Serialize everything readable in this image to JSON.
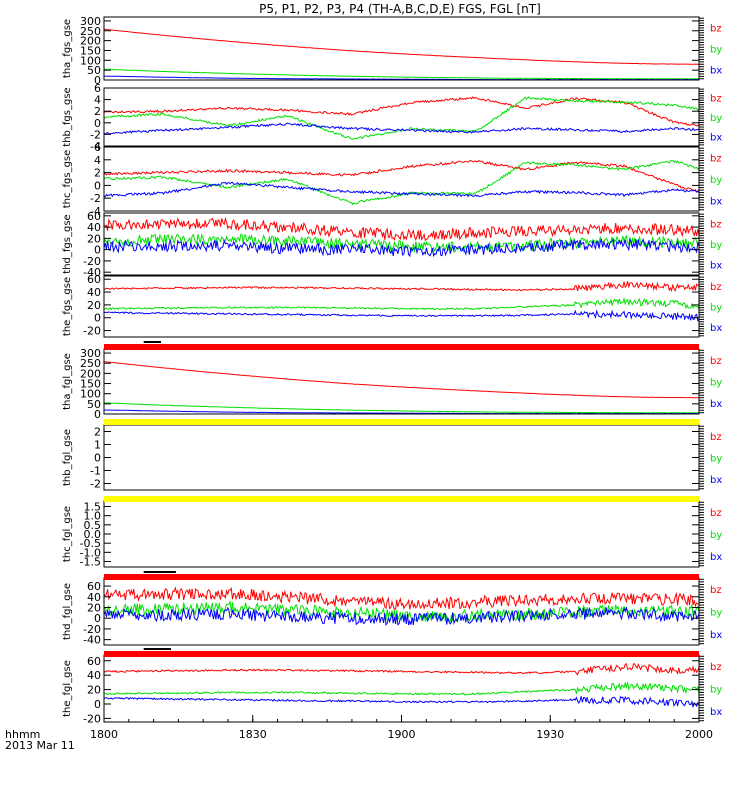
{
  "title": "P5, P1, P2, P3, P4 (TH-A,B,C,D,E) FGS, FGL [nT]",
  "colors": {
    "bz": "#ff0000",
    "by": "#00e000",
    "bx": "#0000ff",
    "bar_red": "#ff0000",
    "bar_yellow": "#ffff00",
    "bar_black": "#000000"
  },
  "x_axis": {
    "ticks": [
      "1800",
      "1830",
      "1900",
      "1930",
      "2000"
    ],
    "time_label": "hhmm",
    "date_label": "2013 Mar 11"
  },
  "chart_data": [
    {
      "type": "line",
      "ylabel": "tha_fgs_gse",
      "yticks": [
        "300",
        "250",
        "200",
        "150",
        "100",
        "50",
        "0"
      ],
      "ylim": [
        0,
        320
      ],
      "legend": [
        "bz",
        "by",
        "bx"
      ],
      "series": [
        {
          "name": "bz",
          "x": [
            0,
            10,
            20,
            30,
            40,
            50,
            60,
            70,
            80,
            90,
            100,
            110,
            120
          ],
          "values": [
            258,
            232,
            208,
            186,
            166,
            148,
            133,
            120,
            108,
            97,
            88,
            82,
            80
          ]
        },
        {
          "name": "by",
          "x": [
            0,
            10,
            20,
            30,
            40,
            50,
            60,
            70,
            80,
            90,
            100,
            110,
            120
          ],
          "values": [
            55,
            45,
            37,
            30,
            24,
            19,
            15,
            12,
            9,
            8,
            7,
            6,
            6
          ]
        },
        {
          "name": "bx",
          "x": [
            0,
            10,
            20,
            30,
            40,
            50,
            60,
            70,
            80,
            90,
            100,
            110,
            120
          ],
          "values": [
            20,
            15,
            11,
            8,
            6,
            5,
            4,
            3,
            2,
            2,
            2,
            2,
            2
          ]
        }
      ]
    },
    {
      "type": "line",
      "ylabel": "thb_fgs_gse",
      "yticks": [
        "6",
        "4",
        "2",
        "0",
        "-2",
        "-4"
      ],
      "ylim": [
        -4,
        6
      ],
      "legend": [
        "bz",
        "by",
        "bx"
      ],
      "series": [
        {
          "name": "bz",
          "x": [
            0,
            12,
            25,
            37,
            50,
            62,
            75,
            85,
            95,
            105,
            115,
            120
          ],
          "values": [
            1.8,
            2.0,
            2.5,
            2.2,
            1.5,
            3.5,
            4.3,
            2.5,
            4.2,
            3.5,
            0.1,
            -0.5
          ]
        },
        {
          "name": "by",
          "x": [
            0,
            12,
            25,
            37,
            50,
            62,
            75,
            85,
            95,
            105,
            115,
            120
          ],
          "values": [
            1.0,
            1.5,
            -0.5,
            1.2,
            -2.8,
            -1.0,
            -1.5,
            4.3,
            3.8,
            3.6,
            3.0,
            2.3
          ]
        },
        {
          "name": "bx",
          "x": [
            0,
            12,
            25,
            37,
            50,
            62,
            75,
            85,
            95,
            105,
            115,
            120
          ],
          "values": [
            -1.8,
            -1.3,
            -0.8,
            -0.2,
            -1.0,
            -1.3,
            -1.6,
            -1.0,
            -1.2,
            -1.5,
            -1.0,
            -1.2
          ]
        }
      ]
    },
    {
      "type": "line",
      "ylabel": "thc_fgs_gse",
      "yticks": [
        "6",
        "4",
        "2",
        "0",
        "-2",
        "-4"
      ],
      "ylim": [
        -4,
        6
      ],
      "legend": [
        "bz",
        "by",
        "bx"
      ],
      "series": [
        {
          "name": "bz",
          "x": [
            0,
            12,
            25,
            37,
            50,
            62,
            75,
            85,
            95,
            105,
            115,
            120
          ],
          "values": [
            1.8,
            2.0,
            2.3,
            2.0,
            1.6,
            3.0,
            3.8,
            2.5,
            3.6,
            3.0,
            0.1,
            -1.0
          ]
        },
        {
          "name": "by",
          "x": [
            0,
            12,
            25,
            37,
            50,
            62,
            75,
            85,
            95,
            105,
            115,
            120
          ],
          "values": [
            1.0,
            1.3,
            -0.3,
            1.0,
            -2.8,
            -1.2,
            -1.3,
            3.5,
            3.2,
            2.5,
            3.8,
            2.6
          ]
        },
        {
          "name": "bx",
          "x": [
            0,
            12,
            25,
            37,
            50,
            62,
            75,
            85,
            95,
            105,
            115,
            120
          ],
          "values": [
            -1.6,
            -1.2,
            0.4,
            -0.3,
            -1.0,
            -1.3,
            -1.6,
            -1.0,
            -1.1,
            -1.5,
            -0.7,
            -1.0
          ]
        }
      ]
    },
    {
      "type": "line",
      "ylabel": "thd_fgs_gse",
      "yticks": [
        "60",
        "40",
        "20",
        "0",
        "-20",
        "-40"
      ],
      "ylim": [
        -45,
        65
      ],
      "legend": [
        "bz",
        "by",
        "bx"
      ],
      "series": [
        {
          "name": "bz",
          "x": [
            0,
            12,
            25,
            37,
            50,
            62,
            75,
            85,
            95,
            105,
            115,
            120
          ],
          "values": [
            43,
            45,
            46,
            40,
            30,
            25,
            30,
            33,
            36,
            38,
            35,
            33
          ]
        },
        {
          "name": "by",
          "x": [
            0,
            12,
            25,
            37,
            50,
            62,
            75,
            85,
            95,
            105,
            115,
            120
          ],
          "values": [
            15,
            17,
            20,
            15,
            10,
            5,
            5,
            8,
            12,
            15,
            12,
            13
          ]
        },
        {
          "name": "bx",
          "x": [
            0,
            12,
            25,
            37,
            50,
            62,
            75,
            85,
            95,
            105,
            115,
            120
          ],
          "values": [
            5,
            6,
            8,
            2,
            0,
            -2,
            0,
            4,
            8,
            10,
            5,
            3
          ]
        }
      ]
    },
    {
      "type": "line",
      "ylabel": "the_fgs_gse",
      "yticks": [
        "60",
        "40",
        "20",
        "0",
        "-20"
      ],
      "ylim": [
        -30,
        65
      ],
      "legend": [
        "bz",
        "by",
        "bx"
      ],
      "series": [
        {
          "name": "bz",
          "x": [
            0,
            12,
            25,
            37,
            50,
            62,
            75,
            85,
            95,
            105,
            115,
            120
          ],
          "values": [
            45,
            46,
            47,
            47,
            46,
            45,
            44,
            43,
            45,
            52,
            47,
            48
          ]
        },
        {
          "name": "by",
          "x": [
            0,
            12,
            25,
            37,
            50,
            62,
            75,
            85,
            95,
            105,
            115,
            120
          ],
          "values": [
            14,
            15,
            16,
            16,
            15,
            14,
            14,
            17,
            20,
            25,
            22,
            18
          ]
        },
        {
          "name": "bx",
          "x": [
            0,
            12,
            25,
            37,
            50,
            62,
            75,
            85,
            95,
            105,
            115,
            120
          ],
          "values": [
            8,
            7,
            6,
            5,
            4,
            3,
            3,
            4,
            6,
            5,
            2,
            0
          ]
        }
      ]
    },
    {
      "type": "line",
      "ylabel": "tha_fgl_gse",
      "yticks": [
        "300",
        "250",
        "200",
        "150",
        "100",
        "50",
        "0"
      ],
      "ylim": [
        0,
        320
      ],
      "legend": [
        "bz",
        "by",
        "bx"
      ],
      "series": [
        {
          "name": "bz",
          "x": [
            0,
            10,
            20,
            30,
            40,
            50,
            60,
            70,
            80,
            90,
            100,
            110,
            120
          ],
          "values": [
            258,
            232,
            208,
            186,
            166,
            148,
            133,
            120,
            108,
            97,
            88,
            82,
            80
          ]
        },
        {
          "name": "by",
          "x": [
            0,
            10,
            20,
            30,
            40,
            50,
            60,
            70,
            80,
            90,
            100,
            110,
            120
          ],
          "values": [
            55,
            45,
            37,
            30,
            24,
            19,
            15,
            12,
            9,
            8,
            7,
            6,
            6
          ]
        },
        {
          "name": "bx",
          "x": [
            0,
            10,
            20,
            30,
            40,
            50,
            60,
            70,
            80,
            90,
            100,
            110,
            120
          ],
          "values": [
            20,
            15,
            11,
            8,
            6,
            5,
            4,
            3,
            2,
            2,
            2,
            2,
            2
          ]
        }
      ]
    },
    {
      "type": "line",
      "ylabel": "thb_fgl_gse",
      "yticks": [
        "2",
        "1",
        "0",
        "-1",
        "-2"
      ],
      "ylim": [
        -2.5,
        2.5
      ],
      "legend": [
        "bz",
        "by",
        "bx"
      ],
      "series": []
    },
    {
      "type": "line",
      "ylabel": "thc_fgl_gse",
      "yticks": [
        "1.5",
        "1.0",
        "0.5",
        "0.0",
        "-0.5",
        "-1.0",
        "-1.5"
      ],
      "ylim": [
        -1.8,
        1.8
      ],
      "legend": [
        "bz",
        "by",
        "bx"
      ],
      "series": []
    },
    {
      "type": "line",
      "ylabel": "thd_fgl_gse",
      "yticks": [
        "60",
        "40",
        "20",
        "0",
        "-20",
        "-40"
      ],
      "ylim": [
        -50,
        75
      ],
      "legend": [
        "bz",
        "by",
        "bx"
      ],
      "series": [
        {
          "name": "bz",
          "x": [
            0,
            12,
            25,
            37,
            50,
            62,
            75,
            85,
            95,
            105,
            115,
            120
          ],
          "values": [
            43,
            45,
            46,
            40,
            30,
            25,
            30,
            33,
            36,
            38,
            35,
            33
          ]
        },
        {
          "name": "by",
          "x": [
            0,
            12,
            25,
            37,
            50,
            62,
            75,
            85,
            95,
            105,
            115,
            120
          ],
          "values": [
            15,
            17,
            20,
            15,
            10,
            5,
            5,
            8,
            12,
            15,
            12,
            13
          ]
        },
        {
          "name": "bx",
          "x": [
            0,
            12,
            25,
            37,
            50,
            62,
            75,
            85,
            95,
            105,
            115,
            120
          ],
          "values": [
            5,
            6,
            8,
            2,
            0,
            -2,
            0,
            4,
            8,
            10,
            5,
            3
          ]
        }
      ]
    },
    {
      "type": "line",
      "ylabel": "the_fgl_gse",
      "yticks": [
        "60",
        "40",
        "20",
        "0",
        "-20"
      ],
      "ylim": [
        -25,
        68
      ],
      "legend": [
        "bz",
        "by",
        "bx"
      ],
      "series": [
        {
          "name": "bz",
          "x": [
            0,
            12,
            25,
            37,
            50,
            62,
            75,
            85,
            95,
            105,
            115,
            120
          ],
          "values": [
            45,
            46,
            47,
            47,
            46,
            45,
            44,
            43,
            45,
            52,
            47,
            48
          ]
        },
        {
          "name": "by",
          "x": [
            0,
            12,
            25,
            37,
            50,
            62,
            75,
            85,
            95,
            105,
            115,
            120
          ],
          "values": [
            14,
            15,
            16,
            16,
            15,
            14,
            14,
            17,
            20,
            25,
            22,
            18
          ]
        },
        {
          "name": "bx",
          "x": [
            0,
            12,
            25,
            37,
            50,
            62,
            75,
            85,
            95,
            105,
            115,
            120
          ],
          "values": [
            8,
            7,
            6,
            5,
            4,
            3,
            3,
            4,
            6,
            5,
            2,
            0
          ]
        }
      ]
    }
  ],
  "status_bars": [
    {
      "color": "red",
      "marks": [
        [
          8,
          11.5
        ]
      ]
    },
    {
      "color": "yellow",
      "marks": []
    },
    {
      "color": "yellow",
      "marks": []
    },
    {
      "color": "red",
      "marks": [
        [
          8,
          14.5
        ]
      ]
    },
    {
      "color": "red",
      "marks": [
        [
          8,
          13.5
        ]
      ]
    }
  ]
}
